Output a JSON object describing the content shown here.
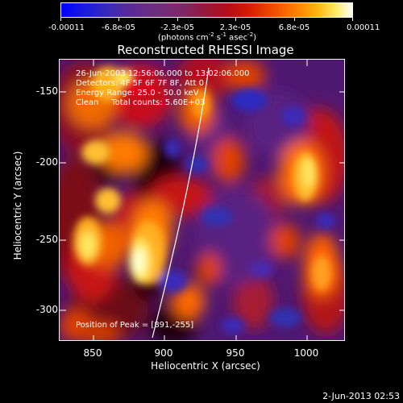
{
  "colorbar": {
    "tick_labels": [
      "-0.00011",
      "-6.8e-05",
      "-2.3e-05",
      "2.3e-05",
      "6.8e-05",
      "0.00011"
    ],
    "unit_text": "(photons cm",
    "unit_exp1": "-2",
    "unit_mid": " s",
    "unit_exp2": "-1",
    "unit_end": " asec",
    "unit_exp3": "-2",
    "unit_close": ")"
  },
  "title": "Reconstructed RHESSI Image",
  "info": {
    "line1": "26-Jun-2003 12:56:06.000 to 13:02:06.000",
    "line2": "Detectors: 4F 5F 6F 7F 8F, Att 0",
    "line3": "Energy Range: 25.0 - 50.0 keV",
    "line4": "Clean     Total counts: 5.60E+03"
  },
  "peak_text": "Position of Peak = [891,-255]",
  "x_axis": {
    "title": "Heliocentric X (arcsec)",
    "ticks": [
      "850",
      "900",
      "950",
      "1000"
    ]
  },
  "y_axis": {
    "title": "Heliocentric Y (arcsec)",
    "ticks": [
      "-150",
      "-200",
      "-250",
      "-300"
    ]
  },
  "date_stamp": "2-Jun-2013 02:53",
  "colors": {
    "background": "#000000",
    "min": "#0000ff",
    "mid": "#7a2a6e",
    "max": "#ffffff"
  }
}
